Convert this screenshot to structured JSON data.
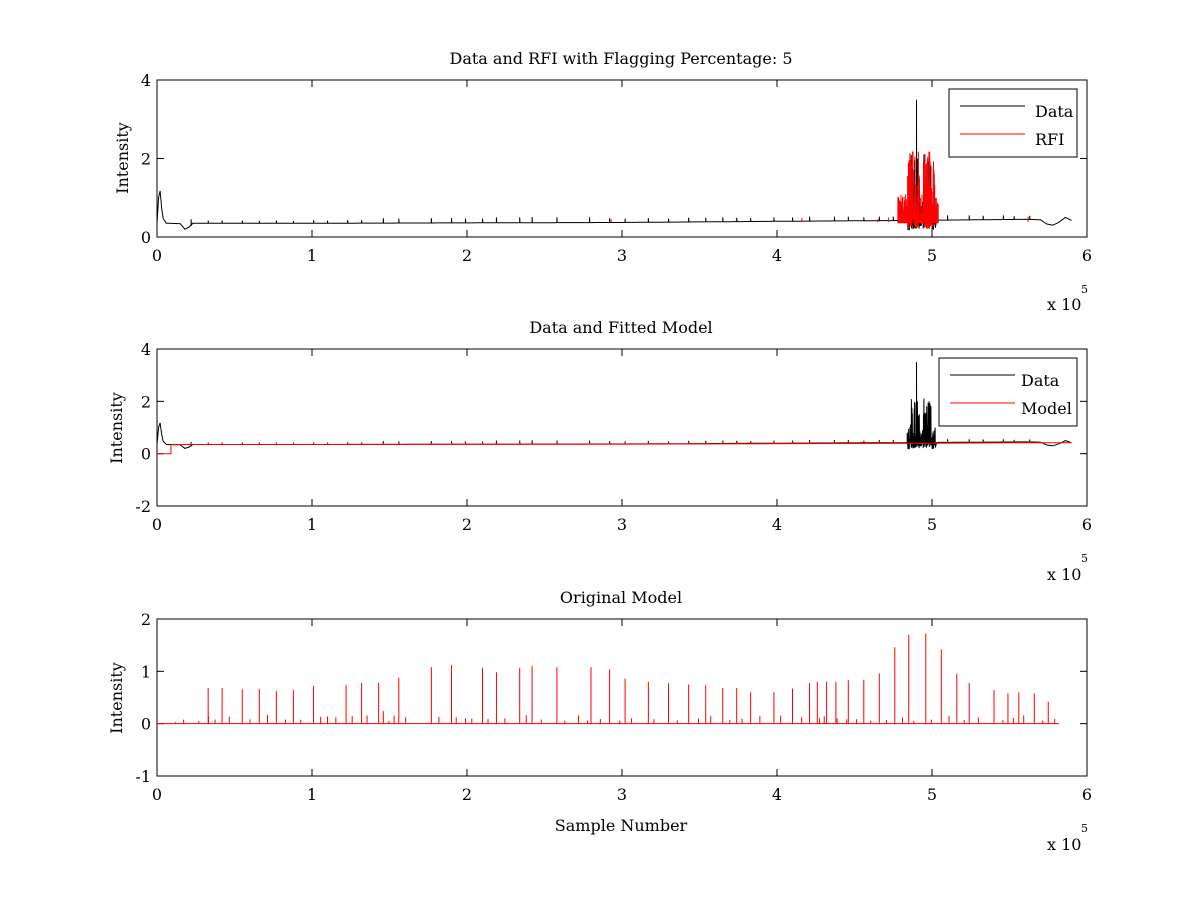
{
  "chart_data": [
    {
      "type": "line",
      "title": "Data and RFI with Flagging Percentage: 5",
      "xlabel": "",
      "ylabel": "Intensity",
      "xlim": [
        0,
        600000
      ],
      "ylim": [
        0,
        4
      ],
      "x_ticks": [
        "0",
        "1",
        "2",
        "3",
        "4",
        "5",
        "6"
      ],
      "y_ticks": [
        "0",
        "2",
        "4"
      ],
      "x_multiplier": {
        "base": "x 10",
        "exponent": "5"
      },
      "grid": false,
      "legend": {
        "position": "top-right",
        "entries": [
          {
            "name": "Data",
            "color": "#000000"
          },
          {
            "name": "RFI",
            "color": "#ff0000"
          }
        ]
      },
      "series": [
        {
          "name": "Data",
          "color": "#000000",
          "baseline": [
            [
              0,
              0.35
            ],
            [
              800,
              0.9
            ],
            [
              1600,
              1.35
            ],
            [
              2400,
              1.0
            ],
            [
              3500,
              0.5
            ],
            [
              6000,
              0.35
            ],
            [
              15000,
              0.34
            ],
            [
              18000,
              0.2
            ],
            [
              21000,
              0.26
            ],
            [
              23000,
              0.35
            ],
            [
              100000,
              0.35
            ],
            [
              200000,
              0.36
            ],
            [
              300000,
              0.37
            ],
            [
              400000,
              0.4
            ],
            [
              480000,
              0.42
            ],
            [
              560000,
              0.45
            ],
            [
              570000,
              0.44
            ],
            [
              574000,
              0.33
            ],
            [
              578000,
              0.3
            ],
            [
              582000,
              0.38
            ],
            [
              586000,
              0.5
            ],
            [
              590000,
              0.42
            ]
          ],
          "spikes": [
            [
              22000,
              0.45
            ],
            [
              33000,
              0.42
            ],
            [
              42000,
              0.42
            ],
            [
              55000,
              0.42
            ],
            [
              66000,
              0.41
            ],
            [
              77000,
              0.42
            ],
            [
              88000,
              0.41
            ],
            [
              101000,
              0.43
            ],
            [
              110000,
              0.42
            ],
            [
              123000,
              0.43
            ],
            [
              132000,
              0.43
            ],
            [
              146000,
              0.48
            ],
            [
              156000,
              0.47
            ],
            [
              177000,
              0.48
            ],
            [
              190000,
              0.48
            ],
            [
              199000,
              0.47
            ],
            [
              210000,
              0.47
            ],
            [
              219000,
              0.5
            ],
            [
              234000,
              0.5
            ],
            [
              242000,
              0.51
            ],
            [
              258000,
              0.5
            ],
            [
              279000,
              0.5
            ],
            [
              292000,
              0.48
            ],
            [
              302000,
              0.47
            ],
            [
              317000,
              0.48
            ],
            [
              330000,
              0.47
            ],
            [
              343000,
              0.49
            ],
            [
              354000,
              0.49
            ],
            [
              365000,
              0.5
            ],
            [
              374000,
              0.49
            ],
            [
              383000,
              0.48
            ],
            [
              398000,
              0.5
            ],
            [
              410000,
              0.5
            ],
            [
              421000,
              0.52
            ],
            [
              437000,
              0.52
            ],
            [
              446000,
              0.52
            ],
            [
              456000,
              0.5
            ],
            [
              466000,
              0.52
            ],
            [
              475000,
              0.52
            ],
            [
              510000,
              0.55
            ],
            [
              524000,
              0.55
            ],
            [
              533000,
              0.54
            ],
            [
              546000,
              0.55
            ],
            [
              553000,
              0.53
            ],
            [
              563000,
              0.54
            ]
          ],
          "burst": {
            "x_range": [
              484000,
              502000
            ],
            "max": 3.5,
            "min": 0.15,
            "peak_x": 490000
          }
        },
        {
          "name": "RFI",
          "color": "#ff0000",
          "segments": [
            [
              293000,
              0.45
            ],
            [
              416000,
              0.48
            ],
            [
              465000,
              0.45
            ],
            [
              472000,
              0.5
            ],
            [
              562000,
              0.52
            ]
          ],
          "burst": {
            "x_range": [
              478000,
              504000
            ],
            "max": 2.2,
            "min": 0.2
          }
        }
      ]
    },
    {
      "type": "line",
      "title": "Data and Fitted Model",
      "xlabel": "",
      "ylabel": "Intensity",
      "xlim": [
        0,
        600000
      ],
      "ylim": [
        -2,
        4
      ],
      "x_ticks": [
        "0",
        "1",
        "2",
        "3",
        "4",
        "5",
        "6"
      ],
      "y_ticks": [
        "-2",
        "0",
        "2",
        "4"
      ],
      "x_multiplier": {
        "base": "x 10",
        "exponent": "5"
      },
      "grid": false,
      "legend": {
        "position": "top-right",
        "entries": [
          {
            "name": "Data",
            "color": "#000000"
          },
          {
            "name": "Model",
            "color": "#ff0000"
          }
        ]
      },
      "series": [
        {
          "name": "Data",
          "color": "#000000",
          "same_as": "panel 1 Data"
        },
        {
          "name": "Model",
          "color": "#ff0000",
          "baseline": [
            [
              0,
              0.0
            ],
            [
              9000,
              0.0
            ],
            [
              9001,
              0.35
            ],
            [
              100000,
              0.35
            ],
            [
              300000,
              0.36
            ],
            [
              500000,
              0.4
            ],
            [
              570000,
              0.42
            ],
            [
              590000,
              0.42
            ]
          ]
        }
      ]
    },
    {
      "type": "line",
      "title": "Original Model",
      "xlabel": "Sample Number",
      "ylabel": "Intensity",
      "xlim": [
        0,
        600000
      ],
      "ylim": [
        -1,
        2
      ],
      "x_ticks": [
        "0",
        "1",
        "2",
        "3",
        "4",
        "5",
        "6"
      ],
      "y_ticks": [
        "-1",
        "0",
        "1",
        "2"
      ],
      "x_multiplier": {
        "base": "x 10",
        "exponent": "5"
      },
      "grid": false,
      "series": [
        {
          "name": "",
          "color": "#ff0000",
          "baseline_value": 0,
          "x_range": [
            0,
            582000
          ],
          "spikes": [
            [
              12000,
              0.03
            ],
            [
              27000,
              0.05
            ],
            [
              33000,
              0.68
            ],
            [
              42000,
              0.68
            ],
            [
              55000,
              0.66
            ],
            [
              66000,
              0.66
            ],
            [
              77000,
              0.62
            ],
            [
              88000,
              0.64
            ],
            [
              101000,
              0.72
            ],
            [
              110000,
              0.14
            ],
            [
              122000,
              0.74
            ],
            [
              132000,
              0.78
            ],
            [
              143000,
              0.78
            ],
            [
              146000,
              0.24
            ],
            [
              156000,
              0.88
            ],
            [
              177000,
              1.08
            ],
            [
              190000,
              1.12
            ],
            [
              199000,
              0.1
            ],
            [
              210000,
              1.07
            ],
            [
              219000,
              0.98
            ],
            [
              234000,
              1.07
            ],
            [
              242000,
              1.1
            ],
            [
              258000,
              1.08
            ],
            [
              272000,
              0.16
            ],
            [
              280000,
              1.08
            ],
            [
              292000,
              1.04
            ],
            [
              302000,
              0.86
            ],
            [
              317000,
              0.8
            ],
            [
              330000,
              0.77
            ],
            [
              343000,
              0.75
            ],
            [
              354000,
              0.74
            ],
            [
              365000,
              0.68
            ],
            [
              374000,
              0.68
            ],
            [
              383000,
              0.6
            ],
            [
              398000,
              0.6
            ],
            [
              410000,
              0.67
            ],
            [
              421000,
              0.78
            ],
            [
              426000,
              0.8
            ],
            [
              432000,
              0.8
            ],
            [
              438000,
              0.8
            ],
            [
              446000,
              0.83
            ],
            [
              456000,
              0.84
            ],
            [
              466000,
              0.96
            ],
            [
              476000,
              1.46
            ],
            [
              485000,
              1.7
            ],
            [
              496000,
              1.72
            ],
            [
              506000,
              1.42
            ],
            [
              516000,
              0.95
            ],
            [
              524000,
              0.78
            ],
            [
              540000,
              0.64
            ],
            [
              549000,
              0.58
            ],
            [
              556000,
              0.6
            ],
            [
              566000,
              0.58
            ],
            [
              575000,
              0.42
            ]
          ]
        }
      ]
    }
  ]
}
